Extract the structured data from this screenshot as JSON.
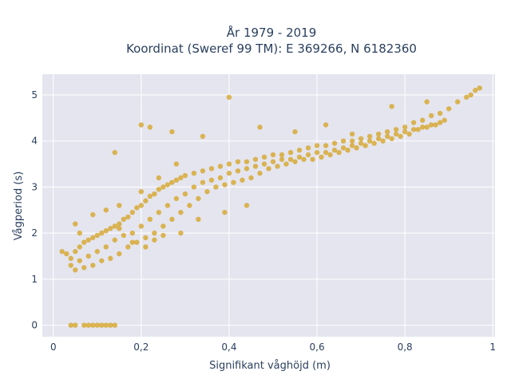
{
  "chart_data": {
    "type": "scatter",
    "title_line1": "År 1979 - 2019",
    "title_line2": "Koordinat (Sweref 99 TM): E 369266, N 6182360",
    "xlabel": "Signifikant våghöjd (m)",
    "ylabel": "Vågperiod (s)",
    "xlim": [
      -0.025,
      1.005
    ],
    "ylim": [
      -0.25,
      5.45
    ],
    "x_ticks": [
      0,
      0.2,
      0.4,
      0.6,
      0.8,
      1
    ],
    "x_tick_labels": [
      "0",
      "0,2",
      "0,4",
      "0,6",
      "0,8",
      "1"
    ],
    "y_ticks": [
      0,
      1,
      2,
      3,
      4,
      5
    ],
    "y_tick_labels": [
      "0",
      "1",
      "2",
      "3",
      "4",
      "5"
    ],
    "grid": true,
    "marker_color": "#d4a21e",
    "plot_bg": "#e5e5ef",
    "series": [
      {
        "x": [
          0.04,
          0.05,
          0.07,
          0.08,
          0.09,
          0.1,
          0.11,
          0.12,
          0.13,
          0.14,
          0.02,
          0.03,
          0.04,
          0.05,
          0.06,
          0.07,
          0.08,
          0.09,
          0.1,
          0.11,
          0.12,
          0.13,
          0.14,
          0.15,
          0.16,
          0.17,
          0.18,
          0.19,
          0.2,
          0.21,
          0.22,
          0.23,
          0.24,
          0.25,
          0.26,
          0.27,
          0.28,
          0.29,
          0.3,
          0.32,
          0.34,
          0.36,
          0.38,
          0.4,
          0.42,
          0.44,
          0.46,
          0.48,
          0.5,
          0.52,
          0.54,
          0.56,
          0.58,
          0.6,
          0.62,
          0.64,
          0.66,
          0.68,
          0.7,
          0.72,
          0.74,
          0.76,
          0.78,
          0.8,
          0.82,
          0.84,
          0.86,
          0.88,
          0.9,
          0.92,
          0.94,
          0.95,
          0.96,
          0.97,
          0.04,
          0.06,
          0.08,
          0.1,
          0.12,
          0.14,
          0.16,
          0.18,
          0.2,
          0.22,
          0.24,
          0.26,
          0.28,
          0.3,
          0.32,
          0.34,
          0.36,
          0.38,
          0.4,
          0.42,
          0.44,
          0.46,
          0.48,
          0.5,
          0.52,
          0.54,
          0.56,
          0.58,
          0.6,
          0.62,
          0.64,
          0.66,
          0.68,
          0.7,
          0.72,
          0.74,
          0.76,
          0.78,
          0.8,
          0.82,
          0.84,
          0.86,
          0.88,
          0.05,
          0.07,
          0.09,
          0.11,
          0.13,
          0.15,
          0.17,
          0.19,
          0.21,
          0.23,
          0.25,
          0.27,
          0.29,
          0.31,
          0.33,
          0.35,
          0.37,
          0.39,
          0.41,
          0.43,
          0.45,
          0.47,
          0.49,
          0.51,
          0.53,
          0.55,
          0.57,
          0.59,
          0.61,
          0.63,
          0.65,
          0.67,
          0.69,
          0.71,
          0.73,
          0.75,
          0.77,
          0.79,
          0.81,
          0.83,
          0.85,
          0.87,
          0.89,
          0.14,
          0.2,
          0.22,
          0.27,
          0.34,
          0.4,
          0.47,
          0.55,
          0.62,
          0.68,
          0.77,
          0.85,
          0.15,
          0.18,
          0.21,
          0.23,
          0.25,
          0.29,
          0.33,
          0.39,
          0.44,
          0.05,
          0.06,
          0.09,
          0.12,
          0.15,
          0.2,
          0.24,
          0.28
        ],
        "y": [
          0,
          0,
          0,
          0,
          0,
          0,
          0,
          0,
          0,
          0,
          1.6,
          1.55,
          1.45,
          1.6,
          1.7,
          1.8,
          1.85,
          1.9,
          1.95,
          2.0,
          2.05,
          2.1,
          2.15,
          2.2,
          2.3,
          2.35,
          2.45,
          2.55,
          2.6,
          2.7,
          2.8,
          2.85,
          2.95,
          3.0,
          3.05,
          3.1,
          3.15,
          3.2,
          3.25,
          3.3,
          3.35,
          3.4,
          3.45,
          3.5,
          3.55,
          3.55,
          3.6,
          3.65,
          3.7,
          3.7,
          3.75,
          3.8,
          3.85,
          3.9,
          3.9,
          3.95,
          4.0,
          4.0,
          4.05,
          4.1,
          4.15,
          4.2,
          4.25,
          4.3,
          4.4,
          4.45,
          4.55,
          4.6,
          4.7,
          4.85,
          4.95,
          5.0,
          5.1,
          5.15,
          1.3,
          1.4,
          1.5,
          1.6,
          1.7,
          1.85,
          1.95,
          2.0,
          2.15,
          2.3,
          2.45,
          2.6,
          2.75,
          2.85,
          3.0,
          3.1,
          3.15,
          3.2,
          3.3,
          3.35,
          3.4,
          3.45,
          3.5,
          3.55,
          3.6,
          3.6,
          3.65,
          3.7,
          3.75,
          3.75,
          3.8,
          3.85,
          3.9,
          3.95,
          4.0,
          4.05,
          4.1,
          4.15,
          4.2,
          4.25,
          4.3,
          4.35,
          4.4,
          1.2,
          1.25,
          1.3,
          1.4,
          1.45,
          1.55,
          1.7,
          1.8,
          1.9,
          2.0,
          2.15,
          2.3,
          2.45,
          2.6,
          2.75,
          2.9,
          3.0,
          3.05,
          3.1,
          3.15,
          3.2,
          3.3,
          3.4,
          3.45,
          3.5,
          3.55,
          3.6,
          3.6,
          3.65,
          3.7,
          3.75,
          3.8,
          3.85,
          3.9,
          3.95,
          4.0,
          4.05,
          4.1,
          4.15,
          4.25,
          4.3,
          4.35,
          4.45,
          3.75,
          4.35,
          4.3,
          4.2,
          4.1,
          4.95,
          4.3,
          4.2,
          4.35,
          4.15,
          4.75,
          4.85,
          2.1,
          1.8,
          1.7,
          1.85,
          1.95,
          2.0,
          2.3,
          2.45,
          2.6,
          2.2,
          2.0,
          2.4,
          2.5,
          2.6,
          2.9,
          3.2,
          3.5
        ]
      }
    ]
  }
}
